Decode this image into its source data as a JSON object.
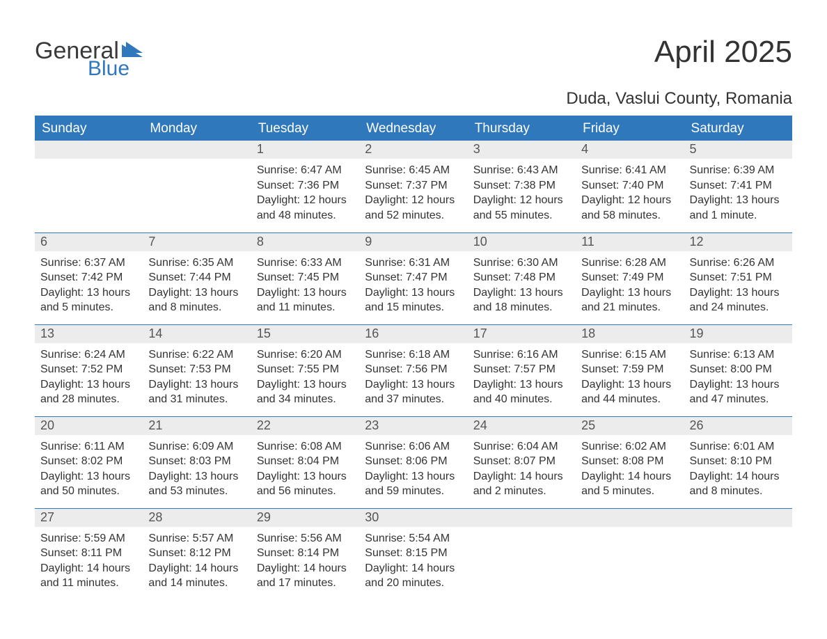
{
  "logo": {
    "line1": "General",
    "line2": "Blue"
  },
  "title": "April 2025",
  "location": "Duda, Vaslui County, Romania",
  "colors": {
    "header_bg": "#2f78bb",
    "header_text": "#ffffff",
    "daynum_bg": "#ececec",
    "text": "#333333",
    "logo_blue": "#2f78bb"
  },
  "day_headers": [
    "Sunday",
    "Monday",
    "Tuesday",
    "Wednesday",
    "Thursday",
    "Friday",
    "Saturday"
  ],
  "weeks": [
    [
      null,
      null,
      {
        "n": "1",
        "sr": "6:47 AM",
        "ss": "7:36 PM",
        "dl": "12 hours and 48 minutes."
      },
      {
        "n": "2",
        "sr": "6:45 AM",
        "ss": "7:37 PM",
        "dl": "12 hours and 52 minutes."
      },
      {
        "n": "3",
        "sr": "6:43 AM",
        "ss": "7:38 PM",
        "dl": "12 hours and 55 minutes."
      },
      {
        "n": "4",
        "sr": "6:41 AM",
        "ss": "7:40 PM",
        "dl": "12 hours and 58 minutes."
      },
      {
        "n": "5",
        "sr": "6:39 AM",
        "ss": "7:41 PM",
        "dl": "13 hours and 1 minute."
      }
    ],
    [
      {
        "n": "6",
        "sr": "6:37 AM",
        "ss": "7:42 PM",
        "dl": "13 hours and 5 minutes."
      },
      {
        "n": "7",
        "sr": "6:35 AM",
        "ss": "7:44 PM",
        "dl": "13 hours and 8 minutes."
      },
      {
        "n": "8",
        "sr": "6:33 AM",
        "ss": "7:45 PM",
        "dl": "13 hours and 11 minutes."
      },
      {
        "n": "9",
        "sr": "6:31 AM",
        "ss": "7:47 PM",
        "dl": "13 hours and 15 minutes."
      },
      {
        "n": "10",
        "sr": "6:30 AM",
        "ss": "7:48 PM",
        "dl": "13 hours and 18 minutes."
      },
      {
        "n": "11",
        "sr": "6:28 AM",
        "ss": "7:49 PM",
        "dl": "13 hours and 21 minutes."
      },
      {
        "n": "12",
        "sr": "6:26 AM",
        "ss": "7:51 PM",
        "dl": "13 hours and 24 minutes."
      }
    ],
    [
      {
        "n": "13",
        "sr": "6:24 AM",
        "ss": "7:52 PM",
        "dl": "13 hours and 28 minutes."
      },
      {
        "n": "14",
        "sr": "6:22 AM",
        "ss": "7:53 PM",
        "dl": "13 hours and 31 minutes."
      },
      {
        "n": "15",
        "sr": "6:20 AM",
        "ss": "7:55 PM",
        "dl": "13 hours and 34 minutes."
      },
      {
        "n": "16",
        "sr": "6:18 AM",
        "ss": "7:56 PM",
        "dl": "13 hours and 37 minutes."
      },
      {
        "n": "17",
        "sr": "6:16 AM",
        "ss": "7:57 PM",
        "dl": "13 hours and 40 minutes."
      },
      {
        "n": "18",
        "sr": "6:15 AM",
        "ss": "7:59 PM",
        "dl": "13 hours and 44 minutes."
      },
      {
        "n": "19",
        "sr": "6:13 AM",
        "ss": "8:00 PM",
        "dl": "13 hours and 47 minutes."
      }
    ],
    [
      {
        "n": "20",
        "sr": "6:11 AM",
        "ss": "8:02 PM",
        "dl": "13 hours and 50 minutes."
      },
      {
        "n": "21",
        "sr": "6:09 AM",
        "ss": "8:03 PM",
        "dl": "13 hours and 53 minutes."
      },
      {
        "n": "22",
        "sr": "6:08 AM",
        "ss": "8:04 PM",
        "dl": "13 hours and 56 minutes."
      },
      {
        "n": "23",
        "sr": "6:06 AM",
        "ss": "8:06 PM",
        "dl": "13 hours and 59 minutes."
      },
      {
        "n": "24",
        "sr": "6:04 AM",
        "ss": "8:07 PM",
        "dl": "14 hours and 2 minutes."
      },
      {
        "n": "25",
        "sr": "6:02 AM",
        "ss": "8:08 PM",
        "dl": "14 hours and 5 minutes."
      },
      {
        "n": "26",
        "sr": "6:01 AM",
        "ss": "8:10 PM",
        "dl": "14 hours and 8 minutes."
      }
    ],
    [
      {
        "n": "27",
        "sr": "5:59 AM",
        "ss": "8:11 PM",
        "dl": "14 hours and 11 minutes."
      },
      {
        "n": "28",
        "sr": "5:57 AM",
        "ss": "8:12 PM",
        "dl": "14 hours and 14 minutes."
      },
      {
        "n": "29",
        "sr": "5:56 AM",
        "ss": "8:14 PM",
        "dl": "14 hours and 17 minutes."
      },
      {
        "n": "30",
        "sr": "5:54 AM",
        "ss": "8:15 PM",
        "dl": "14 hours and 20 minutes."
      },
      null,
      null,
      null
    ]
  ],
  "labels": {
    "sunrise": "Sunrise:",
    "sunset": "Sunset:",
    "daylight": "Daylight:"
  }
}
